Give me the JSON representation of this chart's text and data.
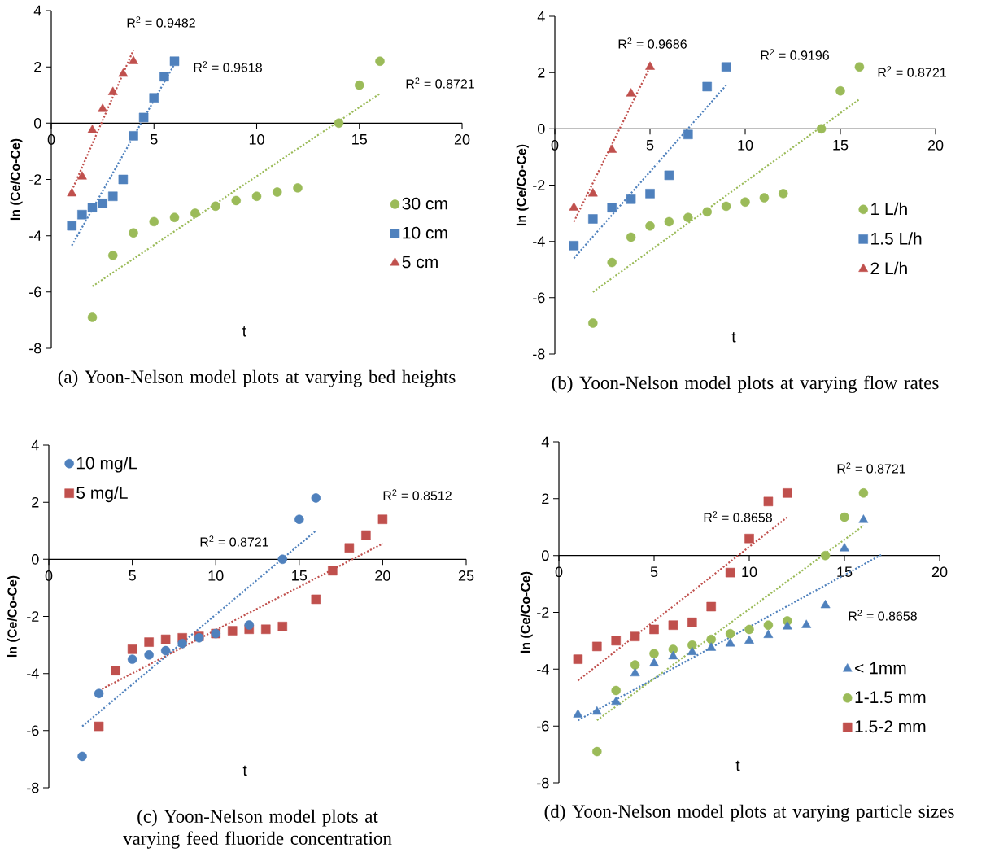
{
  "chart_data": [
    {
      "type": "scatter",
      "title": "(a) Yoon-Nelson model plots at varying bed heights",
      "xlabel": "t",
      "ylabel": "ln (Ce/Co-Ce)",
      "xlim": [
        0,
        20
      ],
      "xticks": [
        0,
        5,
        10,
        15,
        20
      ],
      "ylim": [
        -8,
        4
      ],
      "yticks": [
        -8,
        -6,
        -4,
        -2,
        0,
        2,
        4
      ],
      "legend": "right",
      "series": [
        {
          "name": "30 cm",
          "color": "#9bbb59",
          "marker": "circle",
          "x": [
            2,
            3,
            4,
            5,
            6,
            7,
            8,
            9,
            10,
            11,
            12,
            14,
            15,
            16
          ],
          "values": [
            -6.9,
            -4.7,
            -3.9,
            -3.5,
            -3.35,
            -3.2,
            -2.95,
            -2.75,
            -2.6,
            -2.45,
            -2.3,
            0,
            1.35,
            2.2
          ]
        },
        {
          "name": "10 cm",
          "color": "#4f81bd",
          "marker": "square",
          "x": [
            1,
            1.5,
            2,
            2.5,
            3,
            3.5,
            4,
            4.5,
            5,
            5.5,
            6
          ],
          "values": [
            -3.65,
            -3.25,
            -3.0,
            -2.85,
            -2.6,
            -2.0,
            -0.45,
            0.2,
            0.9,
            1.65,
            2.2
          ]
        },
        {
          "name": "5 cm",
          "color": "#c0504d",
          "marker": "triangle",
          "x": [
            1,
            1.5,
            2,
            2.5,
            3,
            3.5,
            4
          ],
          "values": [
            -2.5,
            -1.9,
            -0.25,
            0.5,
            1.1,
            1.75,
            2.2
          ]
        },
        {
          "type": "line",
          "color": "#9bbb59",
          "line_style": "dotted",
          "x": [
            2,
            16
          ],
          "values": [
            -5.8,
            1.05
          ]
        },
        {
          "type": "line",
          "color": "#4f81bd",
          "line_style": "dotted",
          "x": [
            1,
            6
          ],
          "values": [
            -4.35,
            2.1
          ]
        },
        {
          "type": "line",
          "color": "#c0504d",
          "line_style": "dotted",
          "x": [
            1,
            4
          ],
          "values": [
            -2.4,
            2.6
          ]
        }
      ],
      "annotations": [
        "R$^{2}$ = 0.9482",
        "R$^{2}$ = 0.9618",
        "R$^{2}$ = 0.8721"
      ]
    },
    {
      "type": "scatter",
      "title": "(b) Yoon-Nelson model plots at varying flow rates",
      "xlabel": "t",
      "ylabel": "ln (Ce/Co-Ce)",
      "xlim": [
        0,
        20
      ],
      "xticks": [
        0,
        5,
        10,
        15,
        20
      ],
      "ylim": [
        -8,
        4
      ],
      "yticks": [
        -8,
        -6,
        -4,
        -2,
        0,
        2,
        4
      ],
      "legend": "right",
      "series": [
        {
          "name": "1 L/h",
          "color": "#9bbb59",
          "marker": "circle",
          "x": [
            2,
            3,
            4,
            5,
            6,
            7,
            8,
            9,
            10,
            11,
            12,
            14,
            15,
            16
          ],
          "values": [
            -6.9,
            -4.75,
            -3.85,
            -3.45,
            -3.3,
            -3.15,
            -2.95,
            -2.75,
            -2.6,
            -2.45,
            -2.3,
            0,
            1.35,
            2.2
          ]
        },
        {
          "name": "1.5 L/h",
          "color": "#4f81bd",
          "marker": "square",
          "x": [
            1,
            2,
            3,
            4,
            5,
            6,
            7,
            8,
            9
          ],
          "values": [
            -4.15,
            -3.2,
            -2.8,
            -2.5,
            -2.3,
            -1.65,
            -0.2,
            1.5,
            2.2
          ]
        },
        {
          "name": "2 L/h",
          "color": "#c0504d",
          "marker": "triangle",
          "x": [
            1,
            2,
            3,
            4,
            5
          ],
          "values": [
            -2.8,
            -2.3,
            -0.75,
            1.25,
            2.2
          ]
        },
        {
          "type": "line",
          "color": "#9bbb59",
          "line_style": "dotted",
          "x": [
            2,
            16
          ],
          "values": [
            -5.8,
            1.05
          ]
        },
        {
          "type": "line",
          "color": "#4f81bd",
          "line_style": "dotted",
          "x": [
            1,
            9
          ],
          "values": [
            -4.6,
            1.55
          ]
        },
        {
          "type": "line",
          "color": "#c0504d",
          "line_style": "dotted",
          "x": [
            1,
            5
          ],
          "values": [
            -3.3,
            2.2
          ]
        }
      ],
      "annotations": [
        "R$^{2}$ = 0.9686",
        "R$^{2}$ = 0.9196",
        "R$^{2}$ = 0.8721"
      ]
    },
    {
      "type": "scatter",
      "title": "(c) Yoon-Nelson model plots at varying feed fluoride concentration",
      "xlabel": "t",
      "ylabel": "ln (Ce/Co-Ce)",
      "xlim": [
        0,
        25
      ],
      "xticks": [
        0,
        5,
        10,
        15,
        20,
        25
      ],
      "ylim": [
        -8,
        4
      ],
      "yticks": [
        -8,
        -6,
        -4,
        -2,
        0,
        2,
        4
      ],
      "legend": "top left",
      "series": [
        {
          "name": "10 mg/L",
          "color": "#4f81bd",
          "marker": "circle",
          "x": [
            2,
            3,
            5,
            6,
            7,
            8,
            9,
            10,
            12,
            14,
            15,
            16
          ],
          "values": [
            -6.9,
            -4.7,
            -3.5,
            -3.35,
            -3.2,
            -2.95,
            -2.75,
            -2.6,
            -2.3,
            0,
            1.4,
            2.15
          ]
        },
        {
          "name": "5 mg/L",
          "color": "#c0504d",
          "marker": "square",
          "x": [
            3,
            4,
            5,
            6,
            7,
            8,
            9,
            10,
            11,
            12,
            13,
            14,
            16,
            17,
            18,
            19,
            20
          ],
          "values": [
            -5.85,
            -3.9,
            -3.15,
            -2.9,
            -2.8,
            -2.75,
            -2.7,
            -2.6,
            -2.5,
            -2.45,
            -2.45,
            -2.35,
            -1.4,
            -0.4,
            0.4,
            0.85,
            1.4
          ]
        },
        {
          "type": "line",
          "color": "#4f81bd",
          "line_style": "dotted",
          "x": [
            2,
            16
          ],
          "values": [
            -5.85,
            1.0
          ]
        },
        {
          "type": "line",
          "color": "#c0504d",
          "line_style": "dotted",
          "x": [
            3,
            20
          ],
          "values": [
            -4.6,
            0.55
          ]
        }
      ],
      "annotations": [
        "R$^{2}$ = 0.8721",
        "R$^{2}$ = 0.8512"
      ]
    },
    {
      "type": "scatter",
      "title": "(d) Yoon-Nelson model plots at varying particle sizes",
      "xlabel": "t",
      "ylabel": "ln (Ce/Co-Ce)",
      "xlim": [
        0,
        20
      ],
      "xticks": [
        0,
        5,
        10,
        15,
        20
      ],
      "ylim": [
        -8,
        4
      ],
      "yticks": [
        -8,
        -6,
        -4,
        -2,
        0,
        2,
        4
      ],
      "legend": "bottom right",
      "series": [
        {
          "name": "< 1mm",
          "color": "#4f81bd",
          "marker": "triangle",
          "x": [
            1,
            2,
            3,
            4,
            5,
            6,
            7,
            8,
            9,
            10,
            11,
            12,
            13,
            14,
            15,
            16
          ],
          "values": [
            -5.6,
            -5.5,
            -5.15,
            -4.15,
            -3.8,
            -3.55,
            -3.4,
            -3.25,
            -3.1,
            -3.0,
            -2.8,
            -2.5,
            -2.45,
            -1.75,
            0.25,
            1.25
          ]
        },
        {
          "name": "1-1.5 mm",
          "color": "#9bbb59",
          "marker": "circle",
          "x": [
            2,
            3,
            4,
            5,
            6,
            7,
            8,
            9,
            10,
            11,
            12,
            14,
            15,
            16
          ],
          "values": [
            -6.9,
            -4.75,
            -3.85,
            -3.45,
            -3.3,
            -3.15,
            -2.95,
            -2.75,
            -2.6,
            -2.45,
            -2.3,
            0,
            1.35,
            2.2
          ]
        },
        {
          "name": "1.5-2 mm",
          "color": "#c0504d",
          "marker": "square",
          "x": [
            1,
            2,
            3,
            4,
            5,
            6,
            7,
            8,
            9,
            10,
            11,
            12
          ],
          "values": [
            -3.65,
            -3.2,
            -3.0,
            -2.85,
            -2.6,
            -2.45,
            -2.35,
            -1.8,
            -0.6,
            0.6,
            1.9,
            2.2
          ]
        },
        {
          "type": "line",
          "color": "#4f81bd",
          "line_style": "dotted",
          "x": [
            1,
            17
          ],
          "values": [
            -5.8,
            0.05
          ]
        },
        {
          "type": "line",
          "color": "#9bbb59",
          "line_style": "dotted",
          "x": [
            2,
            16
          ],
          "values": [
            -5.8,
            1.05
          ]
        },
        {
          "type": "line",
          "color": "#c0504d",
          "line_style": "dotted",
          "x": [
            1,
            12
          ],
          "values": [
            -4.4,
            1.35
          ]
        }
      ],
      "annotations": [
        "R$^{2}$ = 0.8721",
        "R$^{2}$ = 0.8658",
        "R$^{2}$ = 0.8658"
      ]
    }
  ]
}
